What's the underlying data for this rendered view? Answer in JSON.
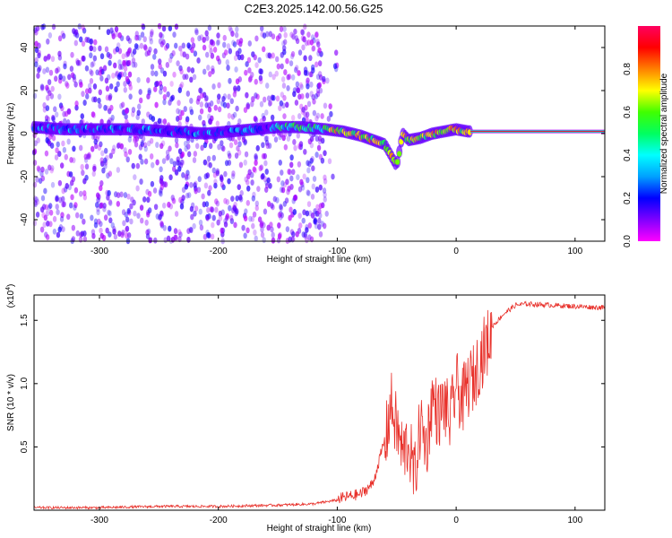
{
  "figure": {
    "title": "C2E3.2025.142.00.56.G25"
  },
  "chart_data": [
    {
      "type": "heatmap",
      "xlabel": "Height of straight line (km)",
      "ylabel": "Frequency (Hz)",
      "xlim": [
        -355,
        125
      ],
      "ylim": [
        -50,
        50
      ],
      "x_ticks": [
        -300,
        -200,
        -100,
        0,
        100
      ],
      "y_ticks": [
        -40,
        -20,
        0,
        20,
        40
      ],
      "grid": false,
      "colorbar": {
        "label": "Normalized spectral amplitude",
        "range": [
          0.0,
          1.0
        ],
        "ticks": [
          0.0,
          0.2,
          0.4,
          0.6,
          0.8
        ],
        "colormap": [
          "#ff00ff",
          "#7f00ff",
          "#0000ff",
          "#00a0ff",
          "#00ffff",
          "#00ff60",
          "#40ff00",
          "#ffff00",
          "#ff8000",
          "#ff0000",
          "#ff0060"
        ]
      },
      "ridge": {
        "x": [
          -355,
          -330,
          -300,
          -270,
          -240,
          -210,
          -190,
          -170,
          -150,
          -130,
          -110,
          -95,
          -80,
          -70,
          -60,
          -55,
          -50,
          -45,
          -40,
          -30,
          -20,
          -10,
          0,
          10,
          125
        ],
        "y": [
          3,
          2,
          2,
          2,
          1,
          0,
          1,
          2,
          3,
          3,
          2,
          1,
          -1,
          -3,
          -5,
          -10,
          -15,
          0,
          -3,
          -2,
          0,
          1,
          2,
          1,
          1
        ]
      }
    },
    {
      "type": "line",
      "xlabel": "Height of straight line (km)",
      "ylabel": "SNR (10 * v/v)",
      "y_exponent_label": "(x10",
      "y_exponent_power": "4",
      "y_exponent_close": ")",
      "xlim": [
        -355,
        125
      ],
      "ylim": [
        0.0,
        1.7
      ],
      "x_ticks": [
        -300,
        -200,
        -100,
        0,
        100
      ],
      "y_ticks": [
        0.5,
        1.0,
        1.5
      ],
      "grid": false,
      "series": [
        {
          "color": "#e8302a",
          "x": [
            -355,
            -300,
            -250,
            -200,
            -150,
            -120,
            -100,
            -80,
            -70,
            -60,
            -55,
            -50,
            -45,
            -40,
            -35,
            -30,
            -25,
            -20,
            -15,
            -10,
            -5,
            0,
            5,
            10,
            15,
            20,
            25,
            30,
            40,
            50,
            60,
            80,
            100,
            125
          ],
          "y": [
            0.02,
            0.02,
            0.03,
            0.03,
            0.04,
            0.05,
            0.08,
            0.12,
            0.2,
            0.55,
            0.9,
            0.7,
            0.5,
            0.6,
            0.3,
            0.75,
            0.55,
            0.95,
            0.8,
            0.9,
            0.75,
            1.05,
            0.9,
            1.05,
            1.1,
            1.25,
            1.35,
            1.45,
            1.55,
            1.62,
            1.63,
            1.62,
            1.61,
            1.6
          ]
        }
      ]
    }
  ]
}
